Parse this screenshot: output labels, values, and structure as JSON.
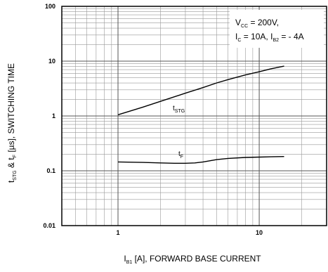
{
  "chart_data": {
    "type": "line",
    "x_scale": "log",
    "y_scale": "log",
    "xlim": [
      0.4,
      30
    ],
    "ylim": [
      0.01,
      100
    ],
    "grid": true,
    "x_major_ticks": [
      1,
      10
    ],
    "x_tick_labels": [
      "1",
      "10"
    ],
    "y_major_ticks": [
      0.01,
      0.1,
      1,
      10,
      100
    ],
    "y_tick_labels": [
      "0.01",
      "0.1",
      "1",
      "10",
      "100"
    ],
    "xlabel": {
      "main": "I",
      "sub": "B1",
      "rest": " [A], FORWARD BASE CURRENT"
    },
    "ylabel": {
      "t1": "t",
      "t1_sub": "STG",
      "amp": " & t",
      "t2_sub": "F",
      "rest": " [µs], SWITCHING TIME"
    },
    "conditions": {
      "line1": {
        "a": "V",
        "a_sub": "CC",
        "b": " = 200V,"
      },
      "line2": {
        "a": "I",
        "a_sub": "C",
        "b": " = 10A, I",
        "b_sub": "B2",
        "c": " = - 4A"
      }
    },
    "series": [
      {
        "name": "tSTG",
        "label_main": "t",
        "label_sub": "STG",
        "x": [
          1,
          1.5,
          2,
          3,
          4,
          5,
          6,
          8,
          10,
          12,
          15
        ],
        "y": [
          1.05,
          1.45,
          1.85,
          2.6,
          3.3,
          4.0,
          4.6,
          5.6,
          6.4,
          7.2,
          8.1
        ]
      },
      {
        "name": "tF",
        "label_main": "t",
        "label_sub": "F",
        "x": [
          1,
          1.5,
          2,
          2.5,
          3,
          3.5,
          4,
          5,
          6,
          8,
          10,
          12,
          15
        ],
        "y": [
          0.145,
          0.142,
          0.139,
          0.137,
          0.137,
          0.139,
          0.145,
          0.16,
          0.168,
          0.175,
          0.178,
          0.18,
          0.182
        ]
      }
    ]
  }
}
